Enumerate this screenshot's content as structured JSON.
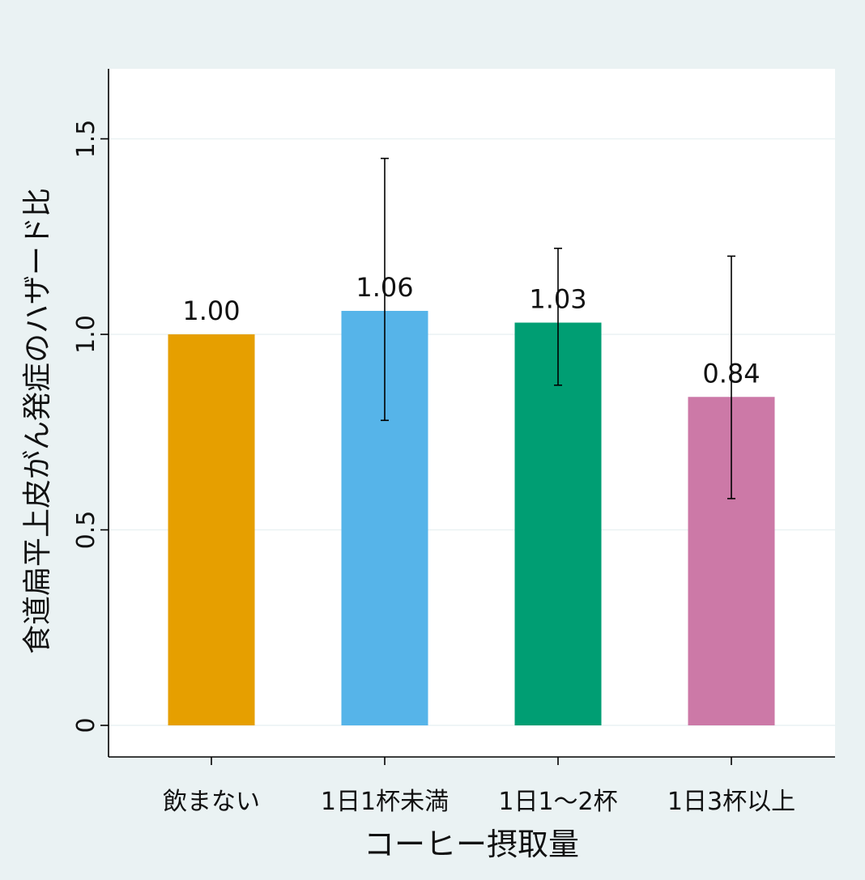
{
  "colors": {
    "background": "#eaf2f3",
    "plot_background": "#ffffff",
    "gridline": "#eaf2f3",
    "axis": "#000000",
    "text": "#111111"
  },
  "chart_data": {
    "type": "bar",
    "title": "",
    "xlabel": "コーヒー摂取量",
    "ylabel": "食道扁平上皮がん発症のハザード比",
    "categories": [
      "飲まない",
      "1日1杯未満",
      "1日1～2杯",
      "1日3杯以上"
    ],
    "values": [
      1.0,
      1.06,
      1.03,
      0.84
    ],
    "value_labels": [
      "1.00",
      "1.06",
      "1.03",
      "0.84"
    ],
    "error_bars": [
      null,
      [
        0.78,
        1.45
      ],
      [
        0.87,
        1.22
      ],
      [
        0.58,
        1.2
      ]
    ],
    "bar_colors": [
      "#e69f00",
      "#56b4e9",
      "#009e73",
      "#cc79a7"
    ],
    "ylim": [
      -0.08,
      1.68
    ],
    "yticks": [
      0,
      0.5,
      1.0,
      1.5
    ],
    "ytick_labels": [
      "0",
      "0.5",
      "1.0",
      "1.5"
    ],
    "grid": true,
    "legend": "none"
  }
}
